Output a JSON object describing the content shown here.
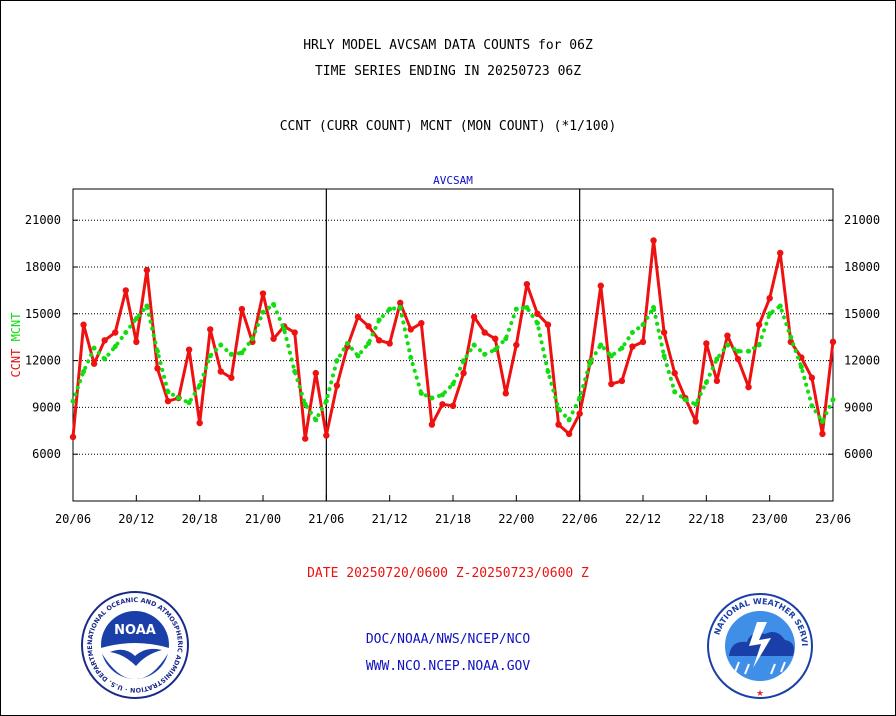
{
  "header": {
    "title_line1": "HRLY MODEL AVCSAM DATA COUNTS for 06Z",
    "title_line2": "TIME SERIES ENDING IN 20250723 06Z",
    "subtitle": "CCNT (CURR COUNT) MCNT (MON COUNT) (*1/100)"
  },
  "footer": {
    "date_range": "DATE 20250720/0600 Z-20250723/0600 Z",
    "org_line": "DOC/NOAA/NWS/NCEP/NCO",
    "url_line": "WWW.NCO.NCEP.NOAA.GOV"
  },
  "logos": {
    "noaa_text": "NOAA",
    "noaa_ring": "NATIONAL OCEANIC AND ATMOSPHERIC ADMINISTRATION · U.S. DEPARTMENT OF COMMERCE ·",
    "nws_ring": "NATIONAL WEATHER SERVICE"
  },
  "colors": {
    "ccnt": "#ee1111",
    "mcnt": "#11dd11",
    "title_blue": "#1010c0",
    "date_red": "#ee1111"
  },
  "chart_data": {
    "type": "line",
    "plot_label": "AVCSAM",
    "ylabel_left_red": "CCNT",
    "ylabel_left_green": "MCNT",
    "x_unit": "hours from 20/06Z",
    "xlim": [
      0,
      72
    ],
    "ylim": [
      3000,
      23000
    ],
    "y_ticks": [
      6000,
      9000,
      12000,
      15000,
      18000,
      21000
    ],
    "y_tick_labels": [
      "6000",
      "9000",
      "12000",
      "15000",
      "18000",
      "21000"
    ],
    "x_ticks": [
      0,
      6,
      12,
      18,
      24,
      30,
      36,
      42,
      48,
      54,
      60,
      66,
      72
    ],
    "x_tick_labels": [
      "20/06",
      "20/12",
      "20/18",
      "21/00",
      "21/06",
      "21/12",
      "21/18",
      "22/00",
      "22/06",
      "22/12",
      "22/18",
      "23/00",
      "23/06"
    ],
    "day_dividers": [
      24,
      48
    ],
    "grid": true,
    "series": [
      {
        "name": "CCNT",
        "style": "solid",
        "x": [
          0,
          1,
          2,
          3,
          4,
          5,
          6,
          7,
          8,
          9,
          10,
          11,
          12,
          13,
          14,
          15,
          16,
          17,
          18,
          19,
          20,
          21,
          22,
          23,
          24,
          25,
          26,
          27,
          28,
          29,
          30,
          31,
          32,
          33,
          34,
          35,
          36,
          37,
          38,
          39,
          40,
          41,
          42,
          43,
          44,
          45,
          46,
          47,
          48,
          49,
          50,
          51,
          52,
          53,
          54,
          55,
          56,
          57,
          58,
          59,
          60,
          61,
          62,
          63,
          64,
          65,
          66,
          67,
          68,
          69,
          70,
          71,
          72
        ],
        "values": [
          7100,
          14300,
          11800,
          13300,
          13800,
          16500,
          13200,
          17800,
          11500,
          9400,
          9600,
          12700,
          8000,
          14000,
          11300,
          10900,
          15300,
          13200,
          16300,
          13400,
          14200,
          13800,
          7000,
          11200,
          7200,
          10400,
          12900,
          14800,
          14200,
          13300,
          13100,
          15700,
          14000,
          14400,
          7900,
          9200,
          9100,
          11200,
          14800,
          13800,
          13400,
          9900,
          13000,
          16900,
          15000,
          14300,
          7900,
          7300,
          8600,
          11900,
          16800,
          10500,
          10700,
          12900,
          13200,
          19700,
          13800,
          11200,
          9600,
          8100,
          13100,
          10700,
          13600,
          12100,
          10300,
          14300,
          16000,
          18900,
          13200,
          12200,
          10900,
          7300,
          13200
        ]
      },
      {
        "name": "MCNT",
        "style": "dotted",
        "x": [
          0,
          1,
          2,
          3,
          4,
          5,
          6,
          7,
          8,
          9,
          10,
          11,
          12,
          13,
          14,
          15,
          16,
          17,
          18,
          19,
          20,
          21,
          22,
          23,
          24,
          25,
          26,
          27,
          28,
          29,
          30,
          31,
          32,
          33,
          34,
          35,
          36,
          37,
          38,
          39,
          40,
          41,
          42,
          43,
          44,
          45,
          46,
          47,
          48,
          49,
          50,
          51,
          52,
          53,
          54,
          55,
          56,
          57,
          58,
          59,
          60,
          61,
          62,
          63,
          64,
          65,
          66,
          67,
          68,
          69,
          70,
          71,
          72
        ],
        "values": [
          9400,
          11300,
          12800,
          12100,
          12900,
          13800,
          14700,
          15500,
          12600,
          10000,
          9600,
          9300,
          10400,
          12300,
          13000,
          12400,
          12500,
          13400,
          15100,
          15600,
          14000,
          11300,
          9200,
          8200,
          9400,
          12000,
          13100,
          12300,
          13100,
          14600,
          15300,
          15400,
          12200,
          9900,
          9600,
          9800,
          10500,
          12000,
          13000,
          12400,
          12700,
          13400,
          15300,
          15400,
          14400,
          11300,
          8900,
          8200,
          9600,
          11900,
          13000,
          12300,
          12800,
          13800,
          14300,
          15400,
          12300,
          10000,
          9500,
          9200,
          10600,
          12100,
          13000,
          12600,
          12600,
          13000,
          15000,
          15500,
          13500,
          11600,
          9100,
          8100,
          9500
        ]
      }
    ]
  }
}
